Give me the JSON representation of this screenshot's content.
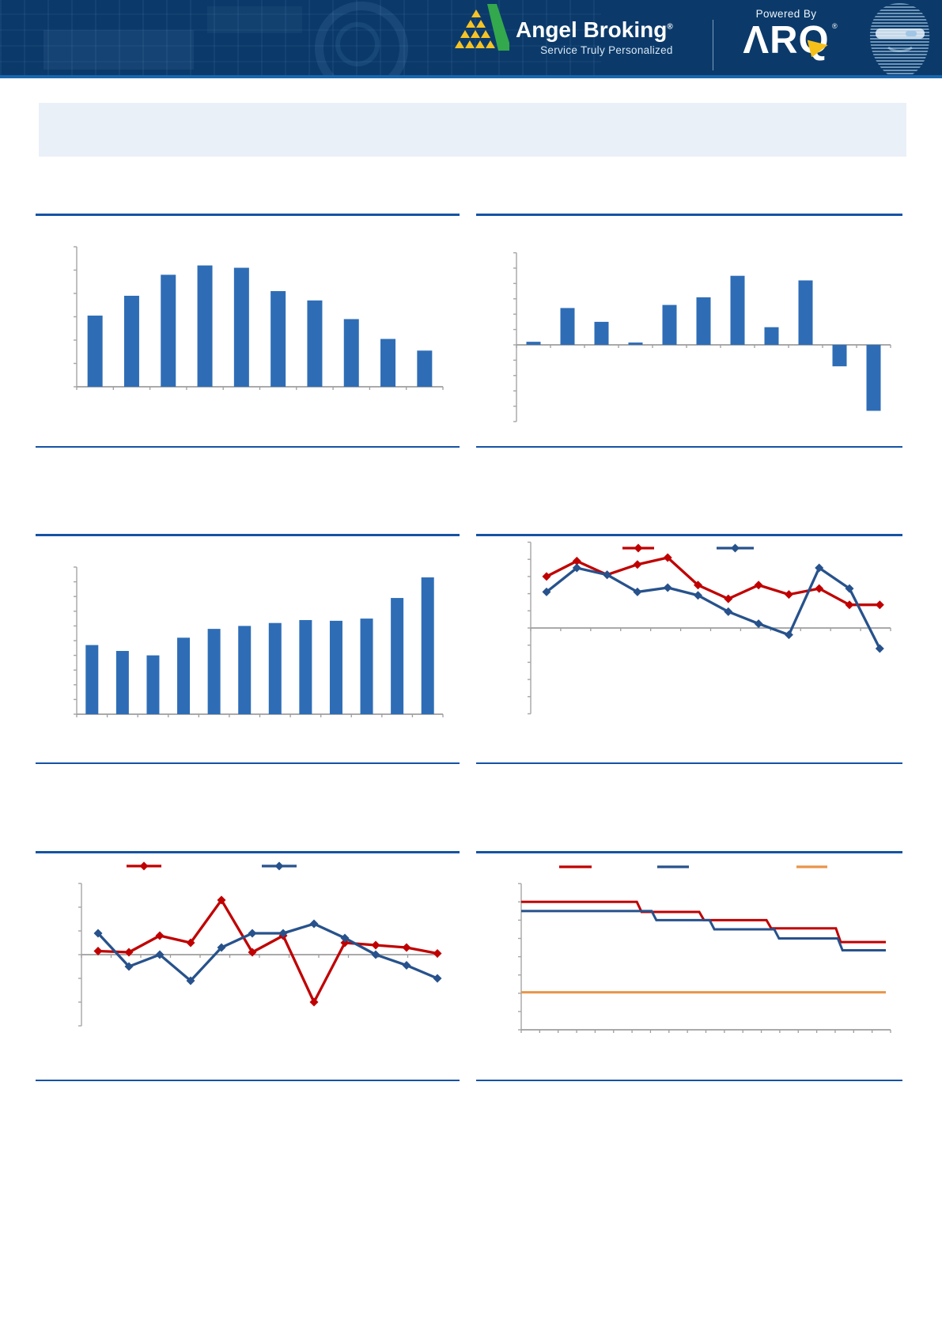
{
  "header": {
    "brand": "Angel Broking",
    "brand_reg": "®",
    "tagline": "Service Truly Personalized",
    "powered_by": "Powered By",
    "arq_letters": "ΛRQ",
    "arq_reg": "®"
  },
  "colors": {
    "header_bg": "#0b3a6a",
    "header_bottom_strip": "#1a66ae",
    "logo_green": "#33a84c",
    "logo_yellow": "#f7c324",
    "arq_accent_yellow": "#f5c01a",
    "highlight_box_bg": "#eaf0f8",
    "separator": "#1553a4",
    "axis_gray": "#a6a6a6",
    "zero_line_gray": "#9e9e9e",
    "bar_blue": "#2e6db6",
    "line_red": "#c00000",
    "line_navy": "#27528c",
    "line_orange": "#e8954a"
  },
  "chart_data": [
    {
      "id": "r1_left",
      "type": "bar",
      "bar_color": "#2e6db6",
      "n_categories": 10,
      "values": [
        3.05,
        3.9,
        4.8,
        5.2,
        5.1,
        4.1,
        3.7,
        2.9,
        2.05,
        1.55
      ],
      "ylim": [
        0,
        6
      ],
      "y_tick_step": 1,
      "grid": false,
      "axis_text_visible": false,
      "legend": []
    },
    {
      "id": "r1_right",
      "type": "bar",
      "bar_color": "#2e6db6",
      "n_categories": 11,
      "values": [
        0.2,
        2.4,
        1.5,
        0.15,
        2.6,
        3.1,
        4.5,
        1.15,
        4.2,
        -1.4,
        -4.3
      ],
      "ylim": [
        -5,
        6
      ],
      "y_tick_step": 1,
      "zero_line": true,
      "grid": false,
      "axis_text_visible": false,
      "legend": []
    },
    {
      "id": "r2_left",
      "type": "bar",
      "bar_color": "#2e6db6",
      "n_categories": 12,
      "values": [
        4.7,
        4.3,
        4.0,
        5.2,
        5.8,
        6.0,
        6.2,
        6.4,
        6.35,
        6.5,
        7.9,
        9.3
      ],
      "ylim": [
        0,
        10
      ],
      "y_tick_step": 1,
      "grid": false,
      "axis_text_visible": false,
      "legend": []
    },
    {
      "id": "r2_right",
      "type": "line",
      "marker": "diamond",
      "ylim": [
        -5,
        5
      ],
      "y_tick_step": 1,
      "zero_line": true,
      "grid": false,
      "legend_position": "top",
      "axis_text_visible": false,
      "series": [
        {
          "name": "red-series",
          "color": "#c00000",
          "values": [
            3.0,
            3.9,
            3.1,
            3.7,
            4.1,
            2.5,
            1.7,
            2.5,
            1.95,
            2.3,
            1.35,
            1.35
          ]
        },
        {
          "name": "navy-series",
          "color": "#27528c",
          "values": [
            2.1,
            3.5,
            3.1,
            2.1,
            2.35,
            1.9,
            0.95,
            0.25,
            -0.4,
            3.5,
            2.3,
            -1.2
          ]
        }
      ]
    },
    {
      "id": "r3_left",
      "type": "line",
      "marker": "diamond",
      "ylim": [
        -3,
        3
      ],
      "y_tick_step": 1,
      "zero_line": true,
      "grid": false,
      "legend_position": "top",
      "axis_text_visible": false,
      "series": [
        {
          "name": "red-series",
          "color": "#c00000",
          "values": [
            0.15,
            0.1,
            0.8,
            0.5,
            2.3,
            0.1,
            0.8,
            -2.0,
            0.5,
            0.4,
            0.3,
            0.05
          ]
        },
        {
          "name": "navy-series",
          "color": "#27528c",
          "values": [
            0.9,
            -0.5,
            0.0,
            -1.1,
            0.3,
            0.9,
            0.9,
            1.3,
            0.7,
            0.0,
            -0.45,
            -1.0
          ]
        }
      ]
    },
    {
      "id": "r3_right",
      "type": "step",
      "ylim": [
        0,
        8
      ],
      "y_tick_step": 1,
      "grid": false,
      "legend_position": "top",
      "axis_text_visible": false,
      "series": [
        {
          "name": "red-step",
          "color": "#c00000",
          "levels": [
            7.0,
            6.45,
            6.0,
            5.55,
            4.8
          ],
          "break_fractions": [
            0.313,
            0.482,
            0.664,
            0.852
          ]
        },
        {
          "name": "navy-step",
          "color": "#27528c",
          "levels": [
            6.5,
            6.0,
            5.5,
            5.0,
            4.35
          ],
          "break_fractions": [
            0.353,
            0.51,
            0.685,
            0.857
          ]
        },
        {
          "name": "orange-flat-line",
          "color": "#e8954a",
          "levels": [
            2.05
          ],
          "break_fractions": []
        }
      ]
    }
  ]
}
